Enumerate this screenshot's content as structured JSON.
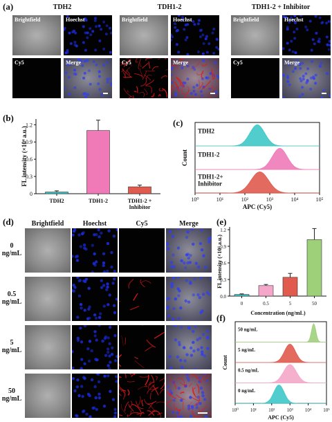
{
  "panel_a": {
    "label": "(a)",
    "groups": [
      {
        "title": "TDH2",
        "brightfield": "Brightfield",
        "hoechst": "Hoechst",
        "cy5": "Cy5",
        "merge": "Merge"
      },
      {
        "title": "TDH1-2",
        "brightfield": "Brightfield",
        "hoechst": "Hoechst",
        "cy5": "Cy5",
        "merge": "Merge"
      },
      {
        "title": "TDH1-2 + Inhibitor",
        "brightfield": "Brightfield",
        "hoechst": "Hoechst",
        "cy5": "Cy5",
        "merge": "Merge"
      }
    ]
  },
  "panel_d": {
    "label": "(d)",
    "columns": [
      "Brightfield",
      "Hoechst",
      "Cy5",
      "Merge"
    ],
    "rows": [
      "0 ng/mL",
      "0.5 ng/mL",
      "5 ng/mL",
      "50 ng/mL"
    ]
  },
  "colors": {
    "hoechst": "#1a2bd8",
    "cy5": "#e01818",
    "teal": "#3fc8c8",
    "pink": "#f07ab8",
    "red": "#e05a4e",
    "lightpink": "#f4a7c9",
    "green": "#9ed07a"
  },
  "chart_data": [
    {
      "label": "(b)",
      "type": "bar",
      "categories": [
        "TDH2",
        "TDH1-2",
        "TDH1-2 + Inhibitor"
      ],
      "values": [
        0.03,
        1.1,
        0.12
      ],
      "errors": [
        0.02,
        0.18,
        0.03
      ],
      "colors": [
        "#3fc8c8",
        "#f07ab8",
        "#e05a4e"
      ],
      "ylabel": "FL intensity (×10⁴ a.u.)",
      "ylim": [
        0,
        1.3
      ],
      "yticks": [
        "0",
        "0.3",
        "0.6",
        "0.9",
        "1.2"
      ]
    },
    {
      "label": "(c)",
      "type": "area",
      "xlabel": "APC (Cy5)",
      "ylabel": "Count",
      "xscale": "log",
      "xticks": [
        "10⁰",
        "10¹",
        "10²",
        "10³",
        "10⁴",
        "10⁵"
      ],
      "series": [
        {
          "name": "TDH2",
          "peak_log10": 2.5,
          "width": 0.3,
          "color": "#3fc8c8"
        },
        {
          "name": "TDH1-2",
          "peak_log10": 3.4,
          "width": 0.3,
          "color": "#f07ab8"
        },
        {
          "name": "TDH1-2+ Inhibitor",
          "peak_log10": 2.6,
          "width": 0.35,
          "color": "#e05a4e"
        }
      ]
    },
    {
      "label": "(e)",
      "type": "bar",
      "categories": [
        "0",
        "0.5",
        "5",
        "50"
      ],
      "values": [
        0.03,
        0.19,
        0.34,
        1.02
      ],
      "errors": [
        0.01,
        0.02,
        0.07,
        0.2
      ],
      "colors": [
        "#3fc8c8",
        "#f4a7c9",
        "#e05a4e",
        "#9ed07a"
      ],
      "ylabel": "FL intensity (×10⁴ a.u.)",
      "xlabel": "Concentration (ng/mL)",
      "ylim": [
        0,
        1.25
      ],
      "yticks": [
        "0.0",
        "0.3",
        "0.6",
        "0.9",
        "1.2"
      ]
    },
    {
      "label": "(f)",
      "type": "area",
      "xlabel": "APC (Cy5)",
      "ylabel": "Count",
      "xscale": "log",
      "xticks": [
        "10⁰",
        "10¹",
        "10²",
        "10³",
        "10⁴",
        "10⁵"
      ],
      "series": [
        {
          "name": "50 ng/mL",
          "peak_log10": 4.3,
          "width": 0.12,
          "color": "#9ed07a"
        },
        {
          "name": "5 ng/mL",
          "peak_log10": 3.0,
          "width": 0.3,
          "color": "#e05a4e"
        },
        {
          "name": "0.5 ng/mL",
          "peak_log10": 3.0,
          "width": 0.35,
          "color": "#f4a7c9"
        },
        {
          "name": "0 ng/mL",
          "peak_log10": 2.4,
          "width": 0.28,
          "color": "#3fc8c8"
        }
      ]
    }
  ]
}
